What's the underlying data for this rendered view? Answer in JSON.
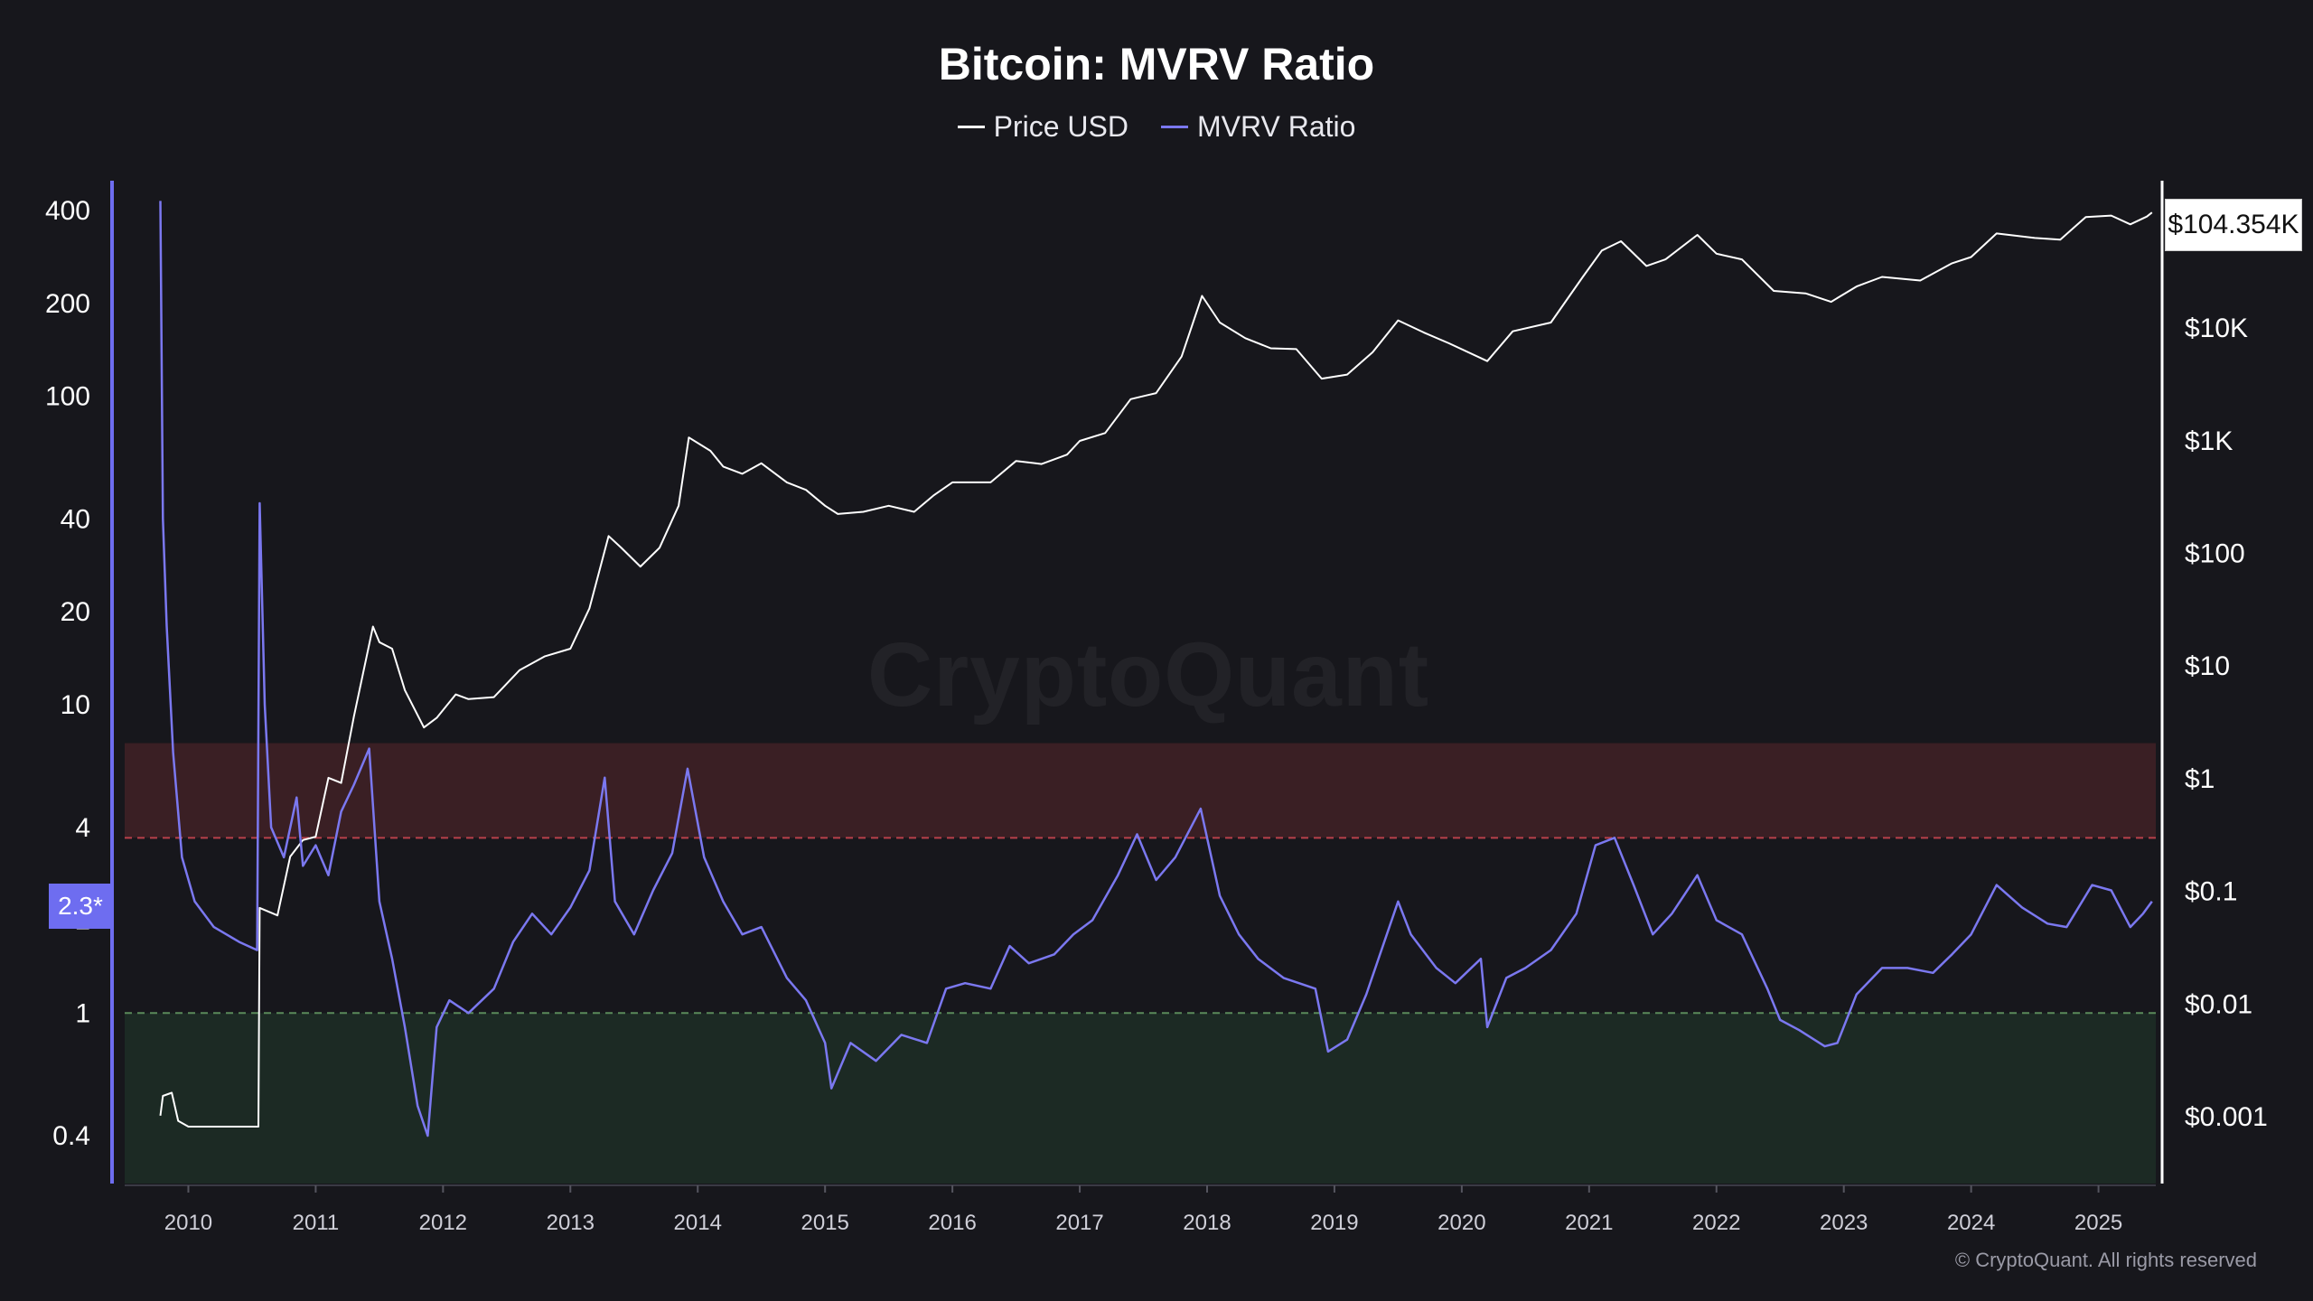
{
  "chart_data": {
    "type": "line",
    "title": "Bitcoin: MVRV Ratio",
    "legend": [
      {
        "name": "Price USD",
        "color": "#ffffff"
      },
      {
        "name": "MVRV Ratio",
        "color": "#7b78f0"
      }
    ],
    "left_axis": {
      "scale": "log",
      "ticks": [
        "400",
        "200",
        "100",
        "40",
        "20",
        "10",
        "4",
        "2",
        "1",
        "0.4"
      ],
      "range": [
        0.28,
        500
      ]
    },
    "right_axis": {
      "scale": "log",
      "ticks": [
        "$10K",
        "$1K",
        "$100",
        "$10",
        "$1",
        "$0.1",
        "$0.01",
        "$0.001"
      ],
      "range": [
        0.00025,
        200000
      ]
    },
    "x_axis": {
      "ticks": [
        "2010",
        "2011",
        "2012",
        "2013",
        "2014",
        "2015",
        "2016",
        "2017",
        "2018",
        "2019",
        "2020",
        "2021",
        "2022",
        "2023",
        "2024",
        "2025"
      ],
      "range": [
        2009.5,
        2025.45
      ]
    },
    "bands": [
      {
        "name": "overvalued",
        "from": 3.7,
        "to": 7.5,
        "color": "#3a1f24",
        "line": 3.7,
        "line_color": "#b8404a"
      },
      {
        "name": "undervalued",
        "from": 0.28,
        "to": 1.0,
        "color": "#1c2a24",
        "line": 1.0,
        "line_color": "#5a8a5a"
      }
    ],
    "series": [
      {
        "name": "Price USD",
        "axis": "right",
        "points": [
          [
            2009.78,
            0.001
          ],
          [
            2009.8,
            0.0015
          ],
          [
            2009.87,
            0.0016
          ],
          [
            2009.92,
            0.0009
          ],
          [
            2010.0,
            0.0008
          ],
          [
            2010.55,
            0.0008
          ],
          [
            2010.56,
            0.07
          ],
          [
            2010.7,
            0.06
          ],
          [
            2010.8,
            0.2
          ],
          [
            2010.9,
            0.28
          ],
          [
            2011.0,
            0.3
          ],
          [
            2011.1,
            1.0
          ],
          [
            2011.2,
            0.9
          ],
          [
            2011.3,
            3.5
          ],
          [
            2011.45,
            22
          ],
          [
            2011.5,
            16
          ],
          [
            2011.6,
            14
          ],
          [
            2011.7,
            6
          ],
          [
            2011.85,
            2.8
          ],
          [
            2011.95,
            3.4
          ],
          [
            2012.1,
            5.5
          ],
          [
            2012.2,
            5
          ],
          [
            2012.4,
            5.2
          ],
          [
            2012.6,
            9
          ],
          [
            2012.8,
            12
          ],
          [
            2013.0,
            14
          ],
          [
            2013.15,
            32
          ],
          [
            2013.3,
            140
          ],
          [
            2013.4,
            110
          ],
          [
            2013.55,
            75
          ],
          [
            2013.7,
            110
          ],
          [
            2013.85,
            260
          ],
          [
            2013.93,
            1050
          ],
          [
            2014.1,
            800
          ],
          [
            2014.2,
            580
          ],
          [
            2014.35,
            500
          ],
          [
            2014.5,
            620
          ],
          [
            2014.7,
            420
          ],
          [
            2014.85,
            360
          ],
          [
            2015.0,
            260
          ],
          [
            2015.1,
            220
          ],
          [
            2015.3,
            230
          ],
          [
            2015.5,
            260
          ],
          [
            2015.7,
            230
          ],
          [
            2015.85,
            320
          ],
          [
            2016.0,
            420
          ],
          [
            2016.3,
            420
          ],
          [
            2016.5,
            650
          ],
          [
            2016.7,
            610
          ],
          [
            2016.9,
            740
          ],
          [
            2017.0,
            980
          ],
          [
            2017.2,
            1150
          ],
          [
            2017.4,
            2300
          ],
          [
            2017.6,
            2600
          ],
          [
            2017.8,
            5500
          ],
          [
            2017.96,
            19000
          ],
          [
            2018.1,
            11000
          ],
          [
            2018.3,
            8000
          ],
          [
            2018.5,
            6500
          ],
          [
            2018.7,
            6400
          ],
          [
            2018.9,
            3500
          ],
          [
            2019.1,
            3800
          ],
          [
            2019.3,
            6000
          ],
          [
            2019.5,
            11500
          ],
          [
            2019.7,
            9000
          ],
          [
            2019.9,
            7200
          ],
          [
            2020.2,
            5000
          ],
          [
            2020.4,
            9200
          ],
          [
            2020.7,
            11000
          ],
          [
            2020.95,
            28000
          ],
          [
            2021.1,
            48000
          ],
          [
            2021.25,
            58000
          ],
          [
            2021.45,
            35000
          ],
          [
            2021.6,
            40000
          ],
          [
            2021.85,
            66000
          ],
          [
            2022.0,
            45000
          ],
          [
            2022.2,
            40000
          ],
          [
            2022.45,
            21000
          ],
          [
            2022.7,
            20000
          ],
          [
            2022.9,
            16800
          ],
          [
            2023.1,
            23000
          ],
          [
            2023.3,
            28000
          ],
          [
            2023.6,
            26000
          ],
          [
            2023.85,
            37000
          ],
          [
            2024.0,
            42000
          ],
          [
            2024.2,
            68000
          ],
          [
            2024.5,
            62000
          ],
          [
            2024.7,
            60000
          ],
          [
            2024.9,
            95000
          ],
          [
            2025.1,
            98000
          ],
          [
            2025.25,
            82000
          ],
          [
            2025.38,
            96000
          ],
          [
            2025.42,
            104354
          ]
        ]
      },
      {
        "name": "MVRV Ratio",
        "axis": "left",
        "points": [
          [
            2009.78,
            430
          ],
          [
            2009.8,
            40
          ],
          [
            2009.83,
            18
          ],
          [
            2009.88,
            7
          ],
          [
            2009.95,
            3.2
          ],
          [
            2010.05,
            2.3
          ],
          [
            2010.2,
            1.9
          ],
          [
            2010.4,
            1.7
          ],
          [
            2010.54,
            1.6
          ],
          [
            2010.56,
            45
          ],
          [
            2010.6,
            10
          ],
          [
            2010.65,
            4
          ],
          [
            2010.75,
            3.2
          ],
          [
            2010.85,
            5
          ],
          [
            2010.9,
            3
          ],
          [
            2011.0,
            3.5
          ],
          [
            2011.1,
            2.8
          ],
          [
            2011.2,
            4.5
          ],
          [
            2011.3,
            5.5
          ],
          [
            2011.42,
            7.2
          ],
          [
            2011.5,
            2.3
          ],
          [
            2011.6,
            1.5
          ],
          [
            2011.7,
            0.9
          ],
          [
            2011.8,
            0.5
          ],
          [
            2011.88,
            0.4
          ],
          [
            2011.95,
            0.9
          ],
          [
            2012.05,
            1.1
          ],
          [
            2012.2,
            1.0
          ],
          [
            2012.4,
            1.2
          ],
          [
            2012.55,
            1.7
          ],
          [
            2012.7,
            2.1
          ],
          [
            2012.85,
            1.8
          ],
          [
            2013.0,
            2.2
          ],
          [
            2013.15,
            2.9
          ],
          [
            2013.27,
            5.8
          ],
          [
            2013.35,
            2.3
          ],
          [
            2013.5,
            1.8
          ],
          [
            2013.65,
            2.5
          ],
          [
            2013.8,
            3.3
          ],
          [
            2013.92,
            6.2
          ],
          [
            2014.05,
            3.2
          ],
          [
            2014.2,
            2.3
          ],
          [
            2014.35,
            1.8
          ],
          [
            2014.5,
            1.9
          ],
          [
            2014.7,
            1.3
          ],
          [
            2014.85,
            1.1
          ],
          [
            2015.0,
            0.8
          ],
          [
            2015.05,
            0.57
          ],
          [
            2015.2,
            0.8
          ],
          [
            2015.4,
            0.7
          ],
          [
            2015.6,
            0.85
          ],
          [
            2015.8,
            0.8
          ],
          [
            2015.95,
            1.2
          ],
          [
            2016.1,
            1.25
          ],
          [
            2016.3,
            1.2
          ],
          [
            2016.45,
            1.65
          ],
          [
            2016.6,
            1.45
          ],
          [
            2016.8,
            1.55
          ],
          [
            2016.95,
            1.8
          ],
          [
            2017.1,
            2.0
          ],
          [
            2017.3,
            2.8
          ],
          [
            2017.45,
            3.8
          ],
          [
            2017.6,
            2.7
          ],
          [
            2017.75,
            3.2
          ],
          [
            2017.95,
            4.6
          ],
          [
            2018.1,
            2.4
          ],
          [
            2018.25,
            1.8
          ],
          [
            2018.4,
            1.5
          ],
          [
            2018.6,
            1.3
          ],
          [
            2018.85,
            1.2
          ],
          [
            2018.95,
            0.75
          ],
          [
            2019.1,
            0.82
          ],
          [
            2019.25,
            1.15
          ],
          [
            2019.5,
            2.3
          ],
          [
            2019.6,
            1.8
          ],
          [
            2019.8,
            1.4
          ],
          [
            2019.95,
            1.25
          ],
          [
            2020.15,
            1.5
          ],
          [
            2020.2,
            0.9
          ],
          [
            2020.35,
            1.3
          ],
          [
            2020.5,
            1.4
          ],
          [
            2020.7,
            1.6
          ],
          [
            2020.9,
            2.1
          ],
          [
            2021.05,
            3.5
          ],
          [
            2021.2,
            3.7
          ],
          [
            2021.35,
            2.6
          ],
          [
            2021.5,
            1.8
          ],
          [
            2021.65,
            2.1
          ],
          [
            2021.85,
            2.8
          ],
          [
            2022.0,
            2.0
          ],
          [
            2022.2,
            1.8
          ],
          [
            2022.4,
            1.2
          ],
          [
            2022.5,
            0.95
          ],
          [
            2022.65,
            0.88
          ],
          [
            2022.85,
            0.78
          ],
          [
            2022.95,
            0.8
          ],
          [
            2023.1,
            1.15
          ],
          [
            2023.3,
            1.4
          ],
          [
            2023.5,
            1.4
          ],
          [
            2023.7,
            1.35
          ],
          [
            2023.85,
            1.55
          ],
          [
            2024.0,
            1.8
          ],
          [
            2024.2,
            2.6
          ],
          [
            2024.4,
            2.2
          ],
          [
            2024.6,
            1.95
          ],
          [
            2024.75,
            1.9
          ],
          [
            2024.95,
            2.6
          ],
          [
            2025.1,
            2.5
          ],
          [
            2025.25,
            1.9
          ],
          [
            2025.35,
            2.1
          ],
          [
            2025.42,
            2.3
          ]
        ]
      }
    ],
    "current_value_label": "2.3*",
    "current_price_label": "$104.354K",
    "watermark": "CryptoQuant",
    "copyright": "© CryptoQuant. All rights reserved"
  }
}
